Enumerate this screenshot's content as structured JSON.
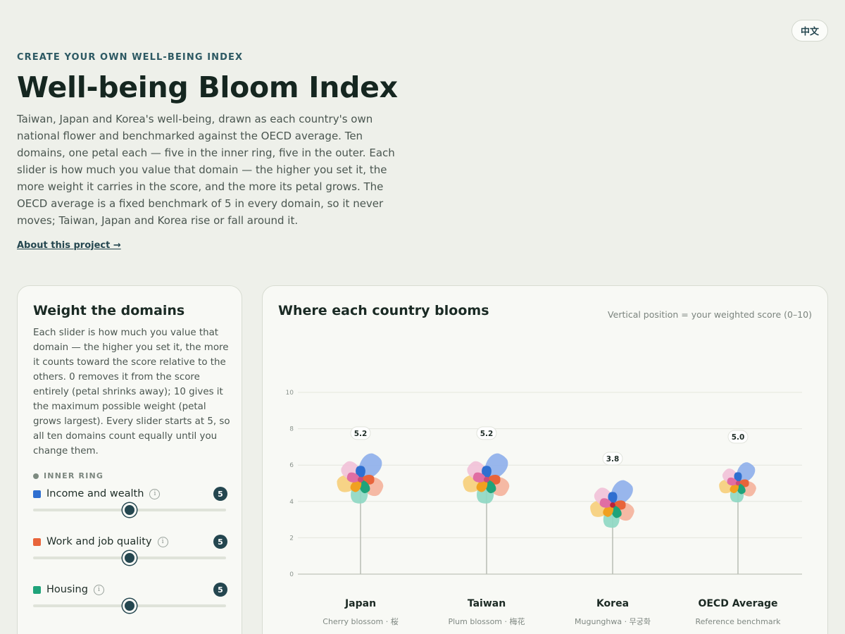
{
  "header": {
    "language_toggle": "中文",
    "eyebrow": "CREATE YOUR OWN WELL-BEING INDEX",
    "title": "Well-being Bloom Index",
    "intro": "Taiwan, Japan and Korea's well-being, drawn as each country's own national flower and benchmarked against the OECD average. Ten domains, one petal each — five in the inner ring, five in the outer. Each slider is how much you value that domain — the higher you set it, the more weight it carries in the score, and the more its petal grows. The OECD average is a fixed benchmark of 5 in every domain, so it never moves; Taiwan, Japan and Korea rise or fall around it.",
    "about_link": "About this project →"
  },
  "weights_panel": {
    "title": "Weight the domains",
    "description": "Each slider is how much you value that domain — the higher you set it, the more it counts toward the score relative to the others. 0 removes it from the score entirely (petal shrinks away); 10 gives it the maximum possible weight (petal grows largest). Every slider starts at 5, so all ten domains count equally until you change them.",
    "ring_label": "INNER RING",
    "info_glyph": "i",
    "slider_min": 0,
    "slider_max": 10,
    "domains": [
      {
        "label": "Income and wealth",
        "value": 5,
        "color": "#2f6fd0"
      },
      {
        "label": "Work and job quality",
        "value": 5,
        "color": "#e8643a"
      },
      {
        "label": "Housing",
        "value": 5,
        "color": "#1fa37a"
      }
    ]
  },
  "chart_panel": {
    "title": "Where each country blooms",
    "note": "Vertical position = your weighted score (0–10)"
  },
  "chart_data": {
    "type": "scatter",
    "ylim": [
      0,
      10
    ],
    "yticks": [
      "0",
      "2",
      "4",
      "6",
      "8",
      "10"
    ],
    "grid": true,
    "categories": [
      "Japan",
      "Taiwan",
      "Korea",
      "OECD Average"
    ],
    "subtitles": [
      "Cherry blossom · 桜",
      "Plum blossom · 梅花",
      "Mugunghwa · 무궁화",
      "Reference benchmark"
    ],
    "values": [
      5.2,
      5.2,
      3.8,
      5.0
    ],
    "value_labels": [
      "5.2",
      "5.2",
      "3.8",
      "5.0"
    ],
    "petal_colors": [
      "#8fb0ea",
      "#f4b39c",
      "#8fd8c3",
      "#f6cf7c",
      "#f1c2d8",
      "#2f6fd0",
      "#e8643a",
      "#1fa37a",
      "#f0a020",
      "#e06ea3"
    ]
  }
}
